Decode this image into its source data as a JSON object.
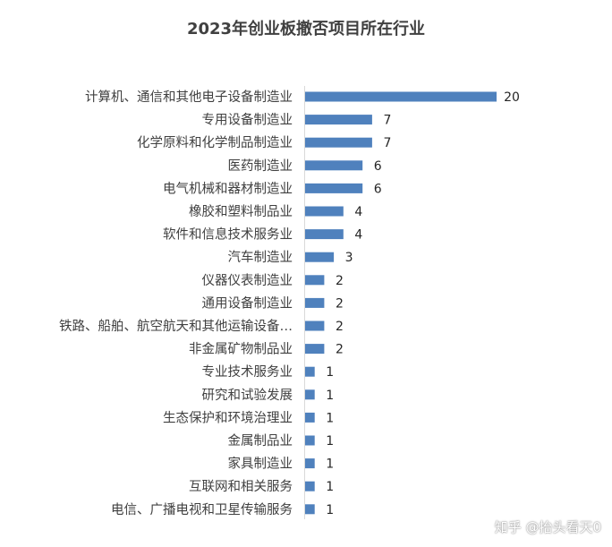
{
  "chart_data": {
    "type": "bar",
    "orientation": "horizontal",
    "title": "2023年创业板撤否项目所在行业",
    "categories": [
      "计算机、通信和其他电子设备制造业",
      "专用设备制造业",
      "化学原料和化学制品制造业",
      "医药制造业",
      "电气机械和器材制造业",
      "橡胶和塑料制品业",
      "软件和信息技术服务业",
      "汽车制造业",
      "仪器仪表制造业",
      "通用设备制造业",
      "铁路、船舶、航空航天和其他运输设备…",
      "非金属矿物制品业",
      "专业技术服务业",
      "研究和试验发展",
      "生态保护和环境治理业",
      "金属制品业",
      "家具制造业",
      "互联网和相关服务",
      "电信、广播电视和卫星传输服务"
    ],
    "values": [
      20,
      7,
      7,
      6,
      6,
      4,
      4,
      3,
      2,
      2,
      2,
      2,
      1,
      1,
      1,
      1,
      1,
      1,
      1
    ],
    "xlim": [
      0,
      20
    ],
    "bar_color": "#4f81bd",
    "data_labels": true,
    "grid": false,
    "legend": "none"
  },
  "watermark": "知乎 @抬头看天0"
}
